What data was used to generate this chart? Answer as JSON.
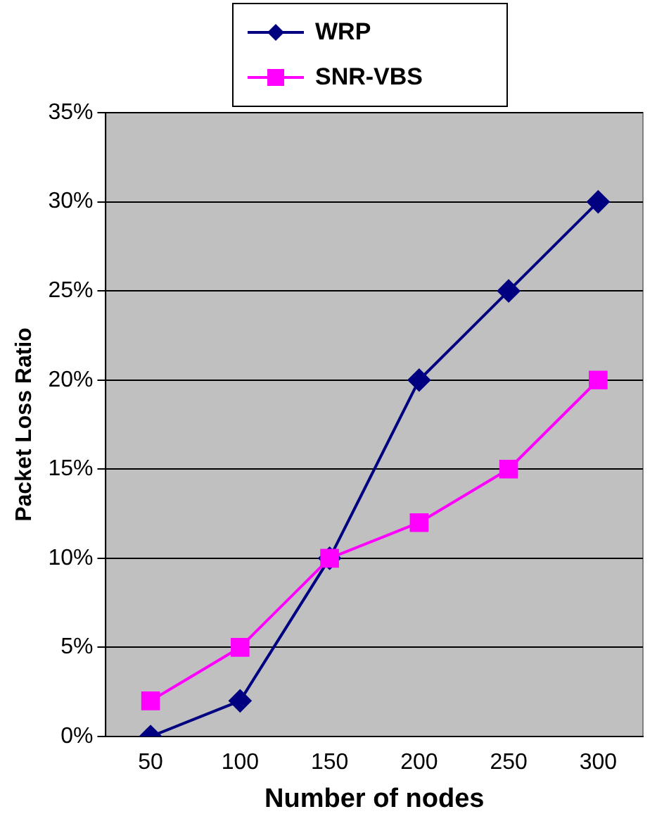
{
  "chart_data": {
    "type": "line",
    "xlabel": "Number of nodes",
    "ylabel": "Packet Loss Ratio",
    "categories": [
      "50",
      "100",
      "150",
      "200",
      "250",
      "300"
    ],
    "series": [
      {
        "name": "WRP",
        "color": "#000080",
        "marker": "diamond",
        "values": [
          0,
          2,
          10,
          20,
          25,
          30
        ]
      },
      {
        "name": "SNR-VBS",
        "color": "#ff00ff",
        "marker": "square",
        "values": [
          2,
          5,
          10,
          12,
          15,
          20
        ]
      }
    ],
    "ylim": [
      0,
      35
    ],
    "yticks": [
      {
        "value": 0,
        "label": "0%"
      },
      {
        "value": 5,
        "label": "5%"
      },
      {
        "value": 10,
        "label": "10%"
      },
      {
        "value": 15,
        "label": "15%"
      },
      {
        "value": 20,
        "label": "20%"
      },
      {
        "value": 25,
        "label": "25%"
      },
      {
        "value": 30,
        "label": "30%"
      },
      {
        "value": 35,
        "label": "35%"
      }
    ],
    "grid": "y",
    "legend": "top",
    "line_style": "solid"
  }
}
